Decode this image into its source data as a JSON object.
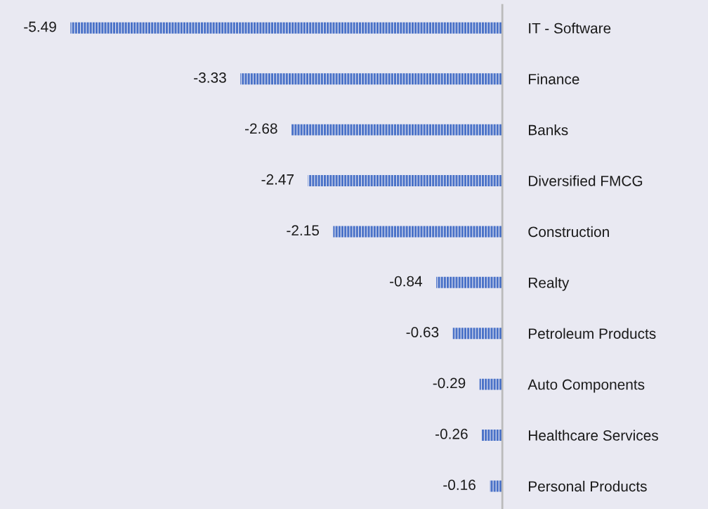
{
  "chart_data": {
    "type": "bar",
    "orientation": "horizontal",
    "categories": [
      "IT - Software",
      "Finance",
      "Banks",
      "Diversified FMCG",
      "Construction",
      "Realty",
      "Petroleum Products",
      "Auto Components",
      "Healthcare Services",
      "Personal Products"
    ],
    "values": [
      -5.49,
      -3.33,
      -2.68,
      -2.47,
      -2.15,
      -0.84,
      -0.63,
      -0.29,
      -0.26,
      -0.16
    ],
    "color": "#4a72c8",
    "data_labels": true,
    "grid": false,
    "legend": false
  }
}
